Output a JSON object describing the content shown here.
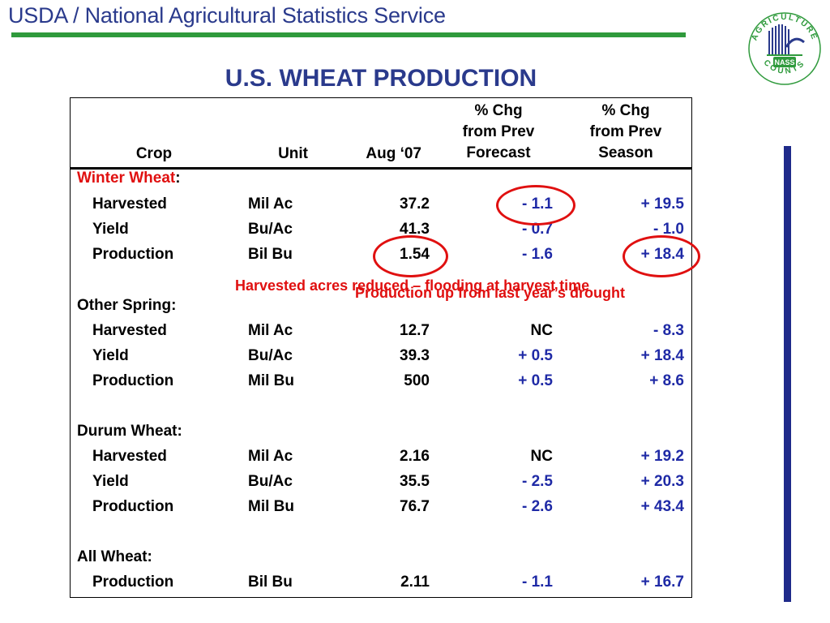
{
  "header": {
    "agency": "USDA / National Agricultural Statistics Service",
    "title": "U.S. WHEAT PRODUCTION"
  },
  "logo": {
    "ring_top": "AGRICULTURE",
    "ring_bottom": "COUNTS",
    "badge": "NASS"
  },
  "columns": {
    "crop": "Crop",
    "unit": "Unit",
    "aug07": "Aug ‘07",
    "chg_forecast": [
      "% Chg",
      "from Prev",
      "Forecast"
    ],
    "chg_season": [
      "% Chg",
      "from Prev",
      "Season"
    ]
  },
  "sections": {
    "winter": {
      "title": "Winter Wheat",
      "colon": ":",
      "rows": [
        {
          "crop": "Harvested",
          "unit": "Mil Ac",
          "aug": "37.2",
          "fc": "- 1.1",
          "ss": "+ 19.5"
        },
        {
          "crop": "Yield",
          "unit": "Bu/Ac",
          "aug": "41.3",
          "fc": "- 0.7",
          "ss": "- 1.0"
        },
        {
          "crop": "Production",
          "unit": "Bil Bu",
          "aug": "1.54",
          "fc": "- 1.6",
          "ss": "+ 18.4"
        }
      ]
    },
    "spring": {
      "title": "Other Spring:",
      "rows": [
        {
          "crop": "Harvested",
          "unit": "Mil Ac",
          "aug": "12.7",
          "fc": "NC",
          "ss": "- 8.3"
        },
        {
          "crop": "Yield",
          "unit": "Bu/Ac",
          "aug": "39.3",
          "fc": "+ 0.5",
          "ss": "+ 18.4"
        },
        {
          "crop": "Production",
          "unit": "Mil Bu",
          "aug": "500",
          "fc": "+ 0.5",
          "ss": "+ 8.6"
        }
      ]
    },
    "durum": {
      "title": "Durum Wheat:",
      "rows": [
        {
          "crop": "Harvested",
          "unit": "Mil Ac",
          "aug": "2.16",
          "fc": "NC",
          "ss": "+ 19.2"
        },
        {
          "crop": "Yield",
          "unit": "Bu/Ac",
          "aug": "35.5",
          "fc": "- 2.5",
          "ss": "+ 20.3"
        },
        {
          "crop": "Production",
          "unit": "Mil Bu",
          "aug": "76.7",
          "fc": "- 2.6",
          "ss": "+ 43.4"
        }
      ]
    },
    "all": {
      "title": "All Wheat:",
      "rows": [
        {
          "crop": "Production",
          "unit": "Bil Bu",
          "aug": "2.11",
          "fc": "- 1.1",
          "ss": "+ 16.7"
        }
      ]
    }
  },
  "annotations": {
    "harvested": "Harvested acres reduced – flooding at harvest time",
    "production": "Production up from last year’s drought"
  },
  "colors": {
    "title_blue": "#2a3a8c",
    "value_blue": "#1f2aa6",
    "highlight_red": "#e01010",
    "rule_green": "#2f9a3c"
  }
}
